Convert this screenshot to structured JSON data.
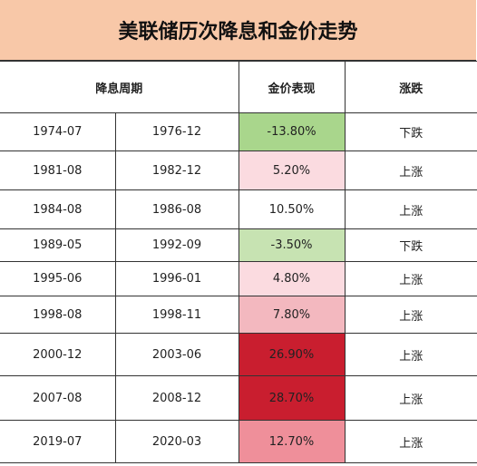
{
  "title": "美联储历次降息和金价走势",
  "headers": {
    "period": "降息周期",
    "gold": "金价表现",
    "trend": "涨跌"
  },
  "rows": [
    {
      "start": "1974-07",
      "end": "1976-12",
      "gold": "-13.80%",
      "trend": "下跌",
      "fill": "#a9d68c"
    },
    {
      "start": "1981-08",
      "end": "1982-12",
      "gold": "5.20%",
      "trend": "上涨",
      "fill": "#fbdbe0"
    },
    {
      "start": "1984-08",
      "end": "1986-08",
      "gold": "10.50%",
      "trend": "上涨",
      "fill": "#ffffff"
    },
    {
      "start": "1989-05",
      "end": "1992-09",
      "gold": "-3.50%",
      "trend": "下跌",
      "fill": "#c7e3b2"
    },
    {
      "start": "1995-06",
      "end": "1996-01",
      "gold": "4.80%",
      "trend": "上涨",
      "fill": "#fbdbe0"
    },
    {
      "start": "1998-08",
      "end": "1998-11",
      "gold": "7.80%",
      "trend": "上涨",
      "fill": "#f3b8bf"
    },
    {
      "start": "2000-12",
      "end": "2003-06",
      "gold": "26.90%",
      "trend": "上涨",
      "fill": "#c91e2f"
    },
    {
      "start": "2007-08",
      "end": "2008-12",
      "gold": "28.70%",
      "trend": "上涨",
      "fill": "#c91e2f"
    },
    {
      "start": "2019-07",
      "end": "2020-03",
      "gold": "12.70%",
      "trend": "上涨",
      "fill": "#ef8f9a"
    }
  ]
}
